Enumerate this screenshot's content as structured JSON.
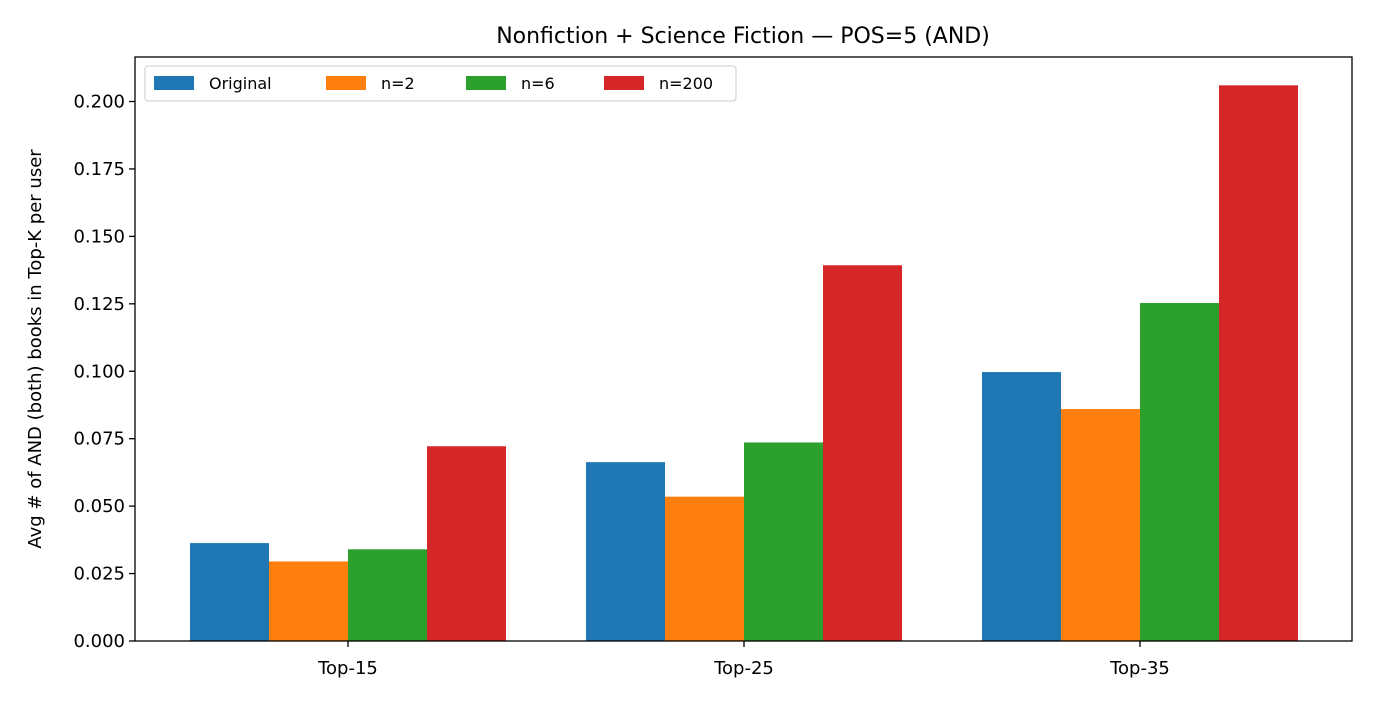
{
  "chart_data": {
    "type": "bar",
    "title": "Nonfiction + Science Fiction — POS=5 (AND)",
    "xlabel": "",
    "ylabel": "Avg # of AND (both) books in Top-K per user",
    "categories": [
      "Top-15",
      "Top-25",
      "Top-35"
    ],
    "series": [
      {
        "name": "Original",
        "color": "#1f77b4",
        "values": [
          0.0363,
          0.0663,
          0.0997
        ]
      },
      {
        "name": "n=2",
        "color": "#ff7f0e",
        "values": [
          0.0295,
          0.0535,
          0.086
        ]
      },
      {
        "name": "n=6",
        "color": "#2ca02c",
        "values": [
          0.034,
          0.0736,
          0.1253
        ]
      },
      {
        "name": "n=200",
        "color": "#d62728",
        "values": [
          0.0722,
          0.1393,
          0.206
        ]
      }
    ],
    "ylim": [
      0,
      0.2165
    ],
    "yticks": [
      "0.000",
      "0.025",
      "0.050",
      "0.075",
      "0.100",
      "0.125",
      "0.150",
      "0.175",
      "0.200"
    ],
    "grid": false,
    "legend": {
      "position": "top-left",
      "columns": 4
    }
  }
}
